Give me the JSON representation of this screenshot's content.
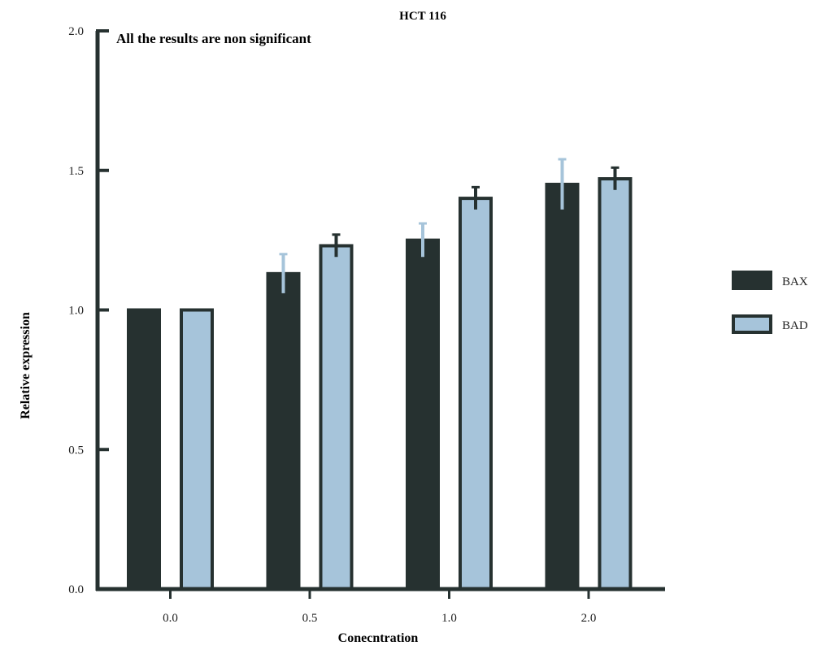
{
  "chart_data": {
    "type": "bar",
    "title": "HCT 116",
    "annotation": "All the results are non significant",
    "xlabel": "Conecntration",
    "ylabel": "Relative expression",
    "categories": [
      "0.0",
      "0.5",
      "1.0",
      "2.0"
    ],
    "ylim": [
      0,
      2.0
    ],
    "yticks": [
      "0.0",
      "0.5",
      "1.0",
      "1.5",
      "2.0"
    ],
    "series": [
      {
        "name": "BAX",
        "values": [
          1.0,
          1.13,
          1.25,
          1.45
        ],
        "error": [
          null,
          0.07,
          0.06,
          0.09
        ],
        "color": "#263130",
        "error_color": "#a6c4da"
      },
      {
        "name": "BAD",
        "values": [
          1.0,
          1.23,
          1.4,
          1.47
        ],
        "error": [
          null,
          0.04,
          0.04,
          0.04
        ],
        "color": "#a6c4da",
        "error_color": "#263130"
      }
    ],
    "legend_position": "right",
    "grid": false
  }
}
